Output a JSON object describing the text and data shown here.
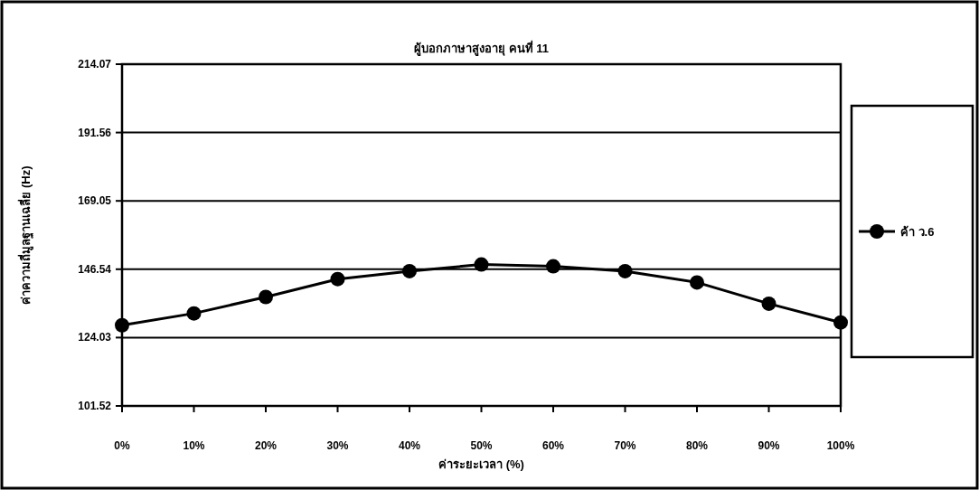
{
  "chart_data": {
    "type": "line",
    "title": "ผู้บอกภาษาสูงอายุ คนที่ 11",
    "xlabel": "ค่าระยะเวลา (%)",
    "ylabel": "ค่าความถี่มูลฐานเฉลี่ย (Hz)",
    "categories": [
      "0%",
      "10%",
      "20%",
      "30%",
      "40%",
      "50%",
      "60%",
      "70%",
      "80%",
      "90%",
      "100%"
    ],
    "series": [
      {
        "name": "ค้า ว.6",
        "color": "#000000",
        "values": [
          128.1,
          132.0,
          137.4,
          143.3,
          145.9,
          148.1,
          147.5,
          145.9,
          142.2,
          135.2,
          129.0
        ]
      }
    ],
    "ylim": [
      101.52,
      214.07
    ],
    "yticks": [
      101.52,
      124.03,
      146.54,
      169.05,
      191.56,
      214.07
    ],
    "grid": "y",
    "legend": "right",
    "marker": "circle",
    "line_style": "solid"
  }
}
